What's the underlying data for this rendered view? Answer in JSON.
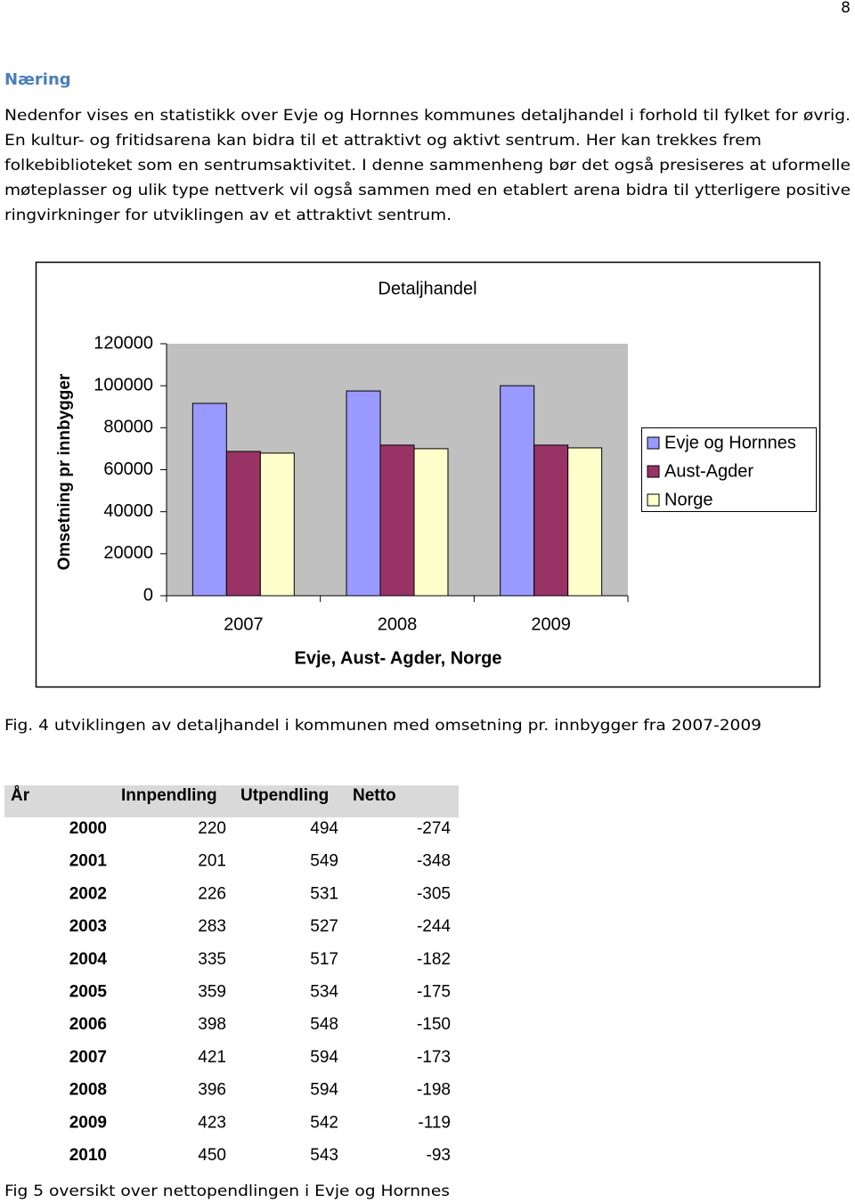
{
  "page_number": "8",
  "heading": "Næring",
  "paragraph": [
    "Nedenfor vises en statistikk over Evje og Hornnes kommunes detaljhandel i forhold til fylket for øvrig.",
    "En kultur- og fritidsarena kan bidra til et attraktivt og aktivt sentrum.  Her kan trekkes frem",
    "folkebiblioteket som en sentrumsaktivitet. I denne sammenheng bør det også presiseres at uformelle",
    "møteplasser og ulik type nettverk vil også sammen med en etablert arena bidra til ytterligere positive",
    "ringvirkninger for utviklingen av et attraktivt sentrum."
  ],
  "chart_data": {
    "type": "bar",
    "title": "Detaljhandel",
    "x_label": "Evje, Aust- Agder, Norge",
    "y_label": "Omsetning pr innbygger",
    "categories": [
      "2007",
      "2008",
      "2009"
    ],
    "series": [
      {
        "name": "Evje og Hornnes",
        "color": "#9999ff",
        "values": [
          91600,
          97500,
          100000
        ]
      },
      {
        "name": "Aust-Agder",
        "color": "#993366",
        "values": [
          68700,
          71700,
          71700
        ]
      },
      {
        "name": "Norge",
        "color": "#ffffcc",
        "values": [
          67900,
          70000,
          70400
        ]
      }
    ],
    "ylim": [
      0,
      120000
    ],
    "yticks": [
      0,
      20000,
      40000,
      60000,
      80000,
      100000,
      120000
    ],
    "grid": false,
    "legend": "right",
    "plot_background": "#c0c0c0"
  },
  "figure_caption": "Fig. 4 utviklingen av detaljhandel i kommunen med omsetning pr. innbygger fra 2007-2009",
  "table": {
    "header": [
      "År",
      "Innpendling",
      "Utpendling",
      "Netto"
    ],
    "rows": [
      [
        2000,
        220,
        494,
        -274
      ],
      [
        2001,
        201,
        549,
        -348
      ],
      [
        2002,
        226,
        531,
        -305
      ],
      [
        2003,
        283,
        527,
        -244
      ],
      [
        2004,
        335,
        517,
        -182
      ],
      [
        2005,
        359,
        534,
        -175
      ],
      [
        2006,
        398,
        548,
        -150
      ],
      [
        2007,
        421,
        594,
        -173
      ],
      [
        2008,
        396,
        594,
        -198
      ],
      [
        2009,
        423,
        542,
        -119
      ],
      [
        2010,
        450,
        543,
        -93
      ]
    ]
  },
  "table_caption": "Fig 5 oversikt over nettopendlingen i Evje og Hornnes"
}
